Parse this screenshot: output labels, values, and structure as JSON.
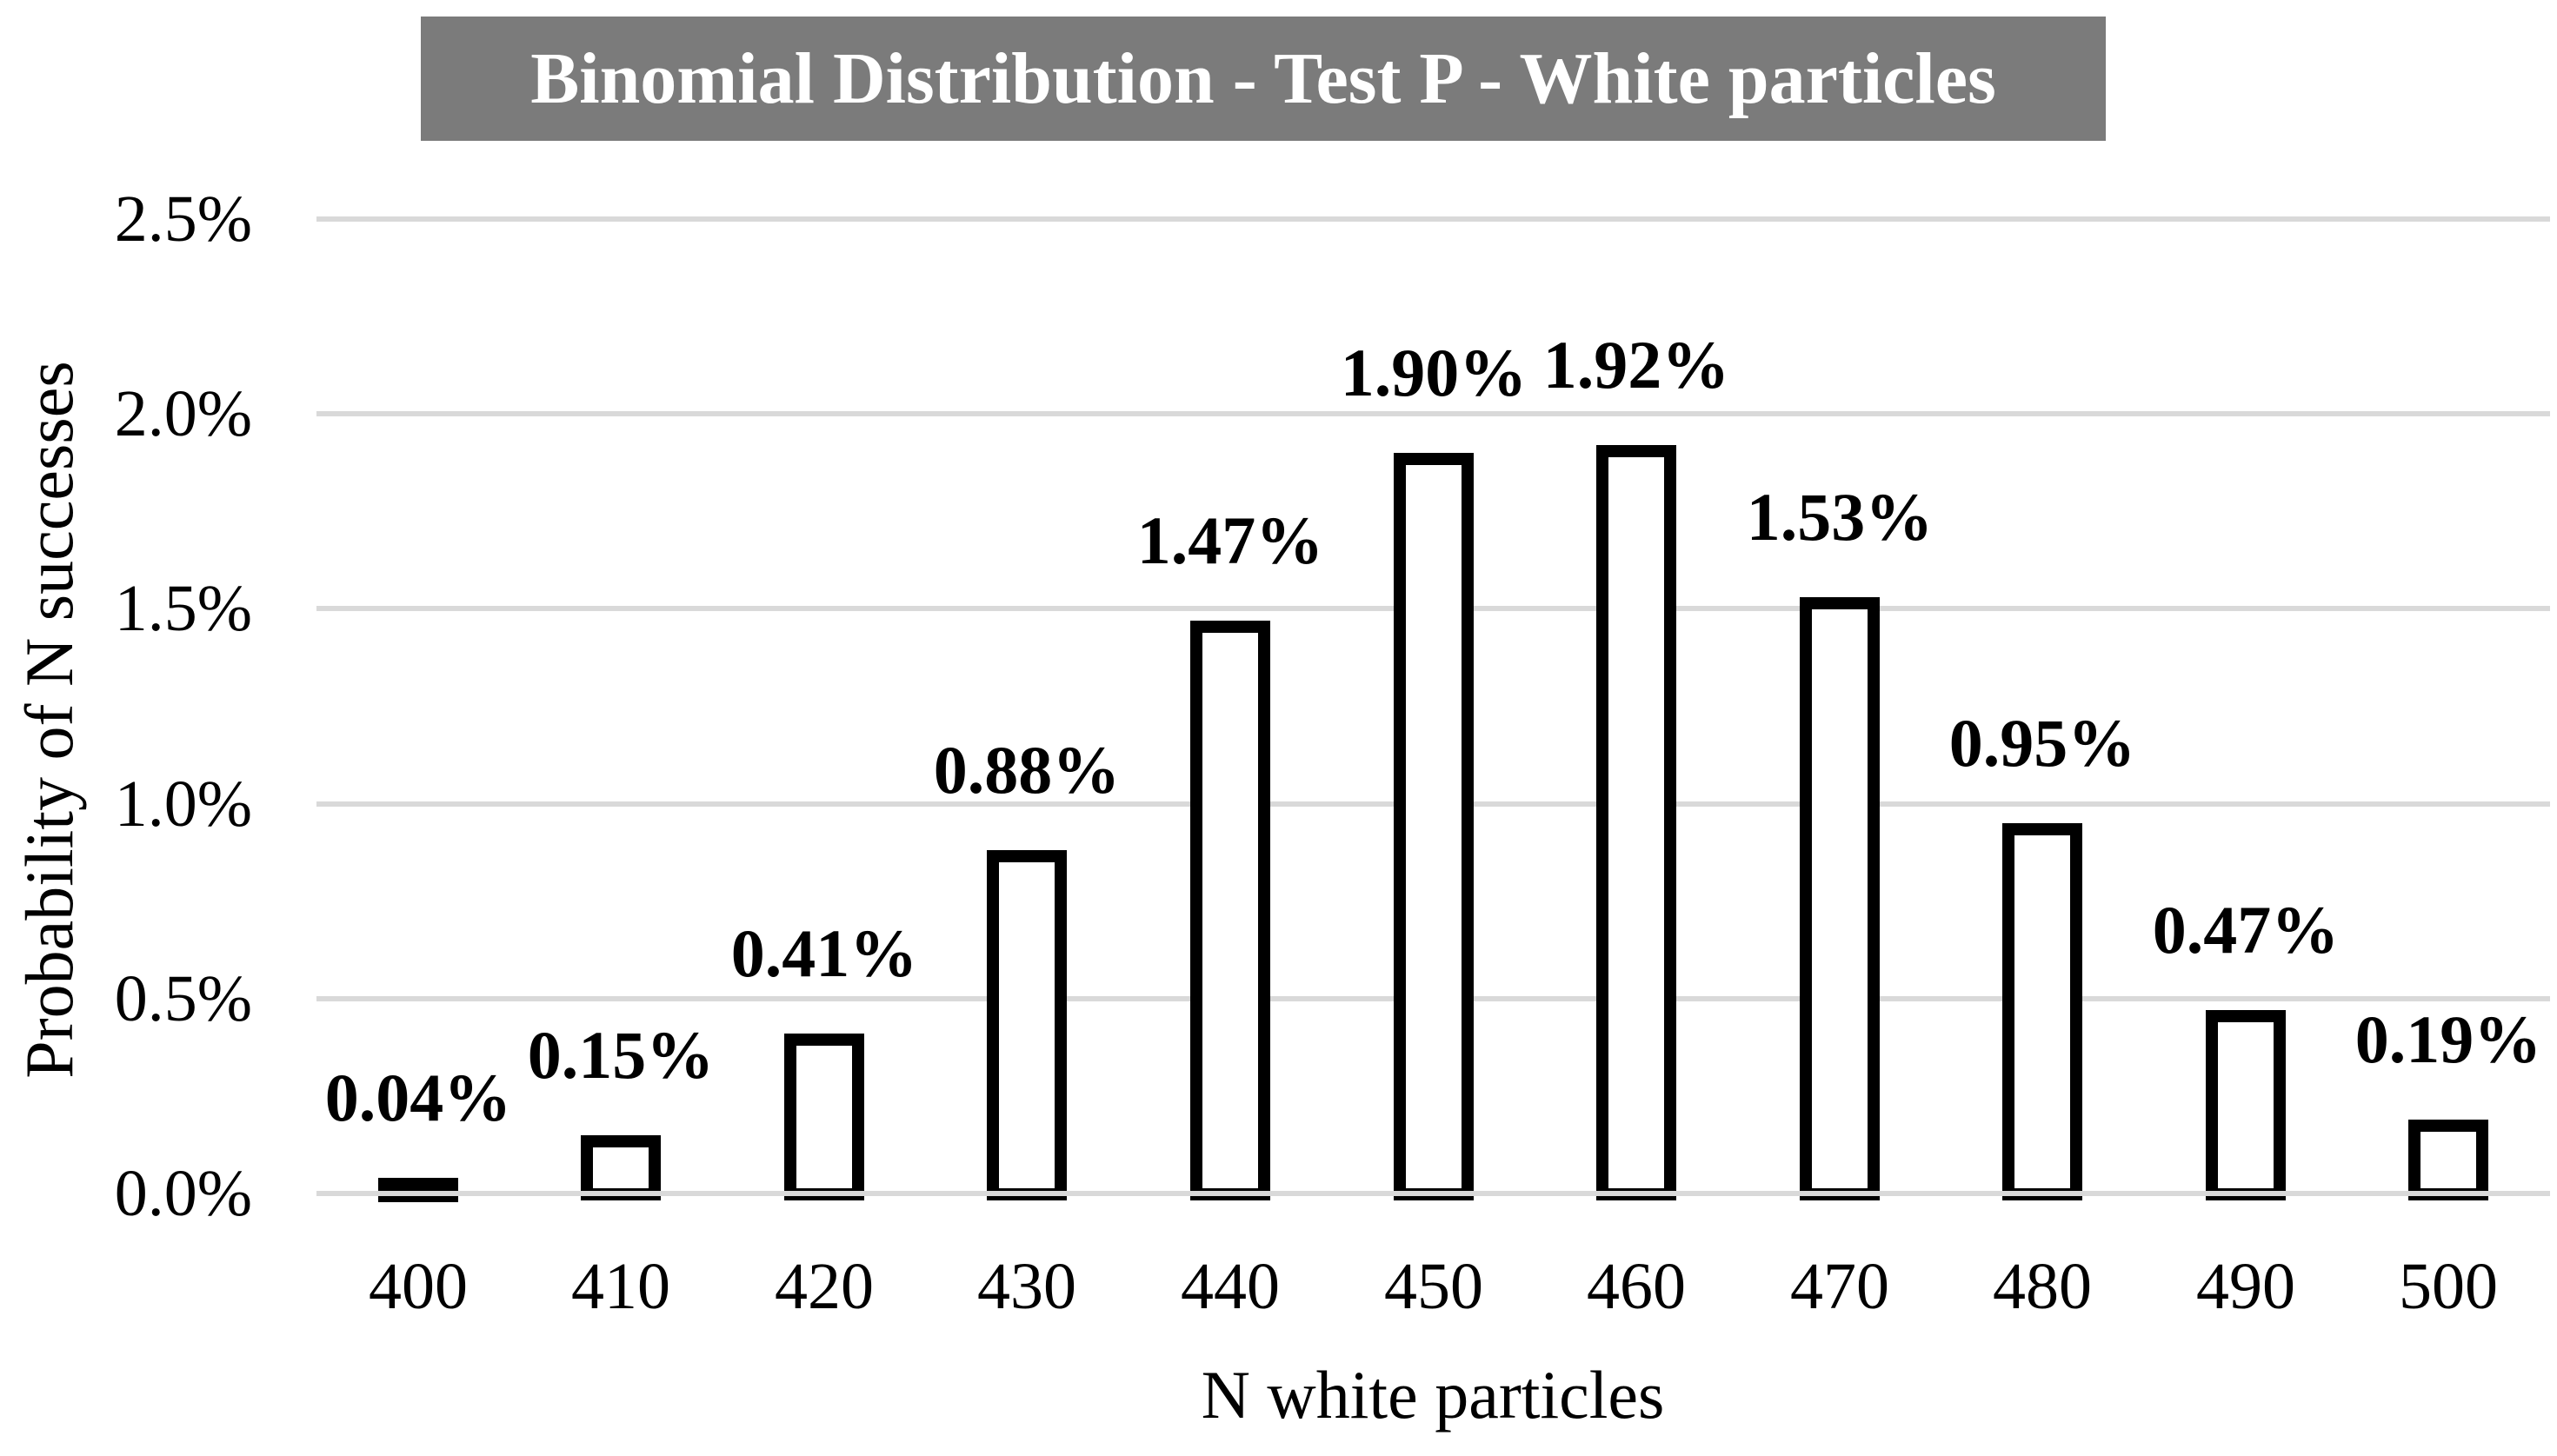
{
  "chart_data": {
    "type": "bar",
    "title": "Binomial Distribution - Test P - White particles",
    "xlabel": "N white particles",
    "ylabel": "Probability of N successes",
    "categories": [
      "400",
      "410",
      "420",
      "430",
      "440",
      "450",
      "460",
      "470",
      "480",
      "490",
      "500"
    ],
    "values": [
      0.04,
      0.15,
      0.41,
      0.88,
      1.47,
      1.9,
      1.92,
      1.53,
      0.95,
      0.47,
      0.19
    ],
    "bar_labels": [
      "0.04%",
      "0.15%",
      "0.41%",
      "0.88%",
      "1.47%",
      "1.90%",
      "1.92%",
      "1.53%",
      "0.95%",
      "0.47%",
      "0.19%"
    ],
    "y_tick_labels": [
      "0.0%",
      "0.5%",
      "1.0%",
      "1.5%",
      "2.0%",
      "2.5%"
    ],
    "ylim": [
      0,
      2.5
    ],
    "y_tick_step": 0.5,
    "grid": "horizontal",
    "legend_position": "none",
    "colors": {
      "title_background": "#7B7B7B",
      "title_text": "#FFFFFF",
      "bar_fill": "#FFFFFF",
      "bar_border": "#000000",
      "gridline": "#D9D9D9",
      "text": "#000000",
      "background": "#FFFFFF"
    }
  }
}
